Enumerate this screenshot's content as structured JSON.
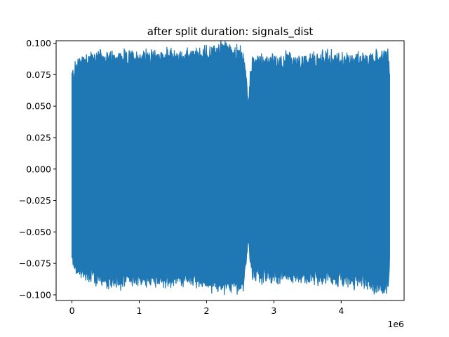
{
  "chart_data": {
    "type": "line",
    "title": "after split duration: signals_dist",
    "xlabel": "",
    "ylabel": "",
    "x_scale_label": "1e6",
    "x_ticks": [
      0,
      1,
      2,
      3,
      4
    ],
    "x_tick_labels": [
      "0",
      "1",
      "2",
      "3",
      "4"
    ],
    "y_ticks": [
      -0.1,
      -0.075,
      -0.05,
      -0.025,
      0.0,
      0.025,
      0.05,
      0.075,
      0.1
    ],
    "y_tick_labels": [
      "−0.100",
      "−0.075",
      "−0.050",
      "−0.025",
      "0.000",
      "0.025",
      "0.050",
      "0.075",
      "0.100"
    ],
    "xlim": [
      -0.235,
      4.935
    ],
    "ylim": [
      -0.1045,
      0.102
    ],
    "grid": false,
    "legend": "none",
    "series": [
      {
        "name": "",
        "color": "#1f77b4",
        "x_range": [
          0,
          4.72
        ],
        "x_unit": "1e6",
        "envelope_upper": {
          "x": [
            0.0,
            0.02,
            0.1,
            0.2,
            0.3,
            0.4,
            0.5,
            0.6,
            0.7,
            0.8,
            0.9,
            1.0,
            1.1,
            1.2,
            1.3,
            1.4,
            1.5,
            1.6,
            1.7,
            1.8,
            1.9,
            2.0,
            2.1,
            2.2,
            2.3,
            2.4,
            2.5,
            2.55,
            2.6,
            2.62,
            2.65,
            2.7,
            2.8,
            2.9,
            3.0,
            3.1,
            3.2,
            3.3,
            3.4,
            3.5,
            3.6,
            3.7,
            3.8,
            3.9,
            4.0,
            4.1,
            4.2,
            4.3,
            4.4,
            4.5,
            4.6,
            4.65,
            4.7,
            4.72
          ],
          "y": [
            0.074,
            0.075,
            0.085,
            0.087,
            0.088,
            0.088,
            0.088,
            0.087,
            0.088,
            0.087,
            0.088,
            0.088,
            0.088,
            0.089,
            0.089,
            0.089,
            0.089,
            0.087,
            0.088,
            0.089,
            0.089,
            0.091,
            0.093,
            0.094,
            0.098,
            0.092,
            0.092,
            0.088,
            0.065,
            0.045,
            0.075,
            0.086,
            0.086,
            0.085,
            0.084,
            0.085,
            0.086,
            0.084,
            0.084,
            0.085,
            0.085,
            0.087,
            0.088,
            0.086,
            0.086,
            0.087,
            0.087,
            0.087,
            0.086,
            0.086,
            0.088,
            0.088,
            0.091,
            0.07
          ]
        },
        "envelope_lower": {
          "x": [
            0.0,
            0.02,
            0.1,
            0.2,
            0.3,
            0.4,
            0.5,
            0.6,
            0.7,
            0.8,
            0.9,
            1.0,
            1.1,
            1.2,
            1.3,
            1.4,
            1.5,
            1.6,
            1.7,
            1.8,
            1.9,
            2.0,
            2.1,
            2.2,
            2.3,
            2.4,
            2.5,
            2.55,
            2.6,
            2.62,
            2.65,
            2.7,
            2.8,
            2.9,
            3.0,
            3.1,
            3.2,
            3.3,
            3.4,
            3.5,
            3.6,
            3.7,
            3.8,
            3.9,
            4.0,
            4.1,
            4.2,
            4.3,
            4.4,
            4.5,
            4.6,
            4.65,
            4.7,
            4.72
          ],
          "y": [
            -0.067,
            -0.075,
            -0.082,
            -0.083,
            -0.085,
            -0.087,
            -0.088,
            -0.087,
            -0.088,
            -0.087,
            -0.086,
            -0.086,
            -0.088,
            -0.085,
            -0.087,
            -0.088,
            -0.087,
            -0.085,
            -0.087,
            -0.086,
            -0.088,
            -0.09,
            -0.09,
            -0.091,
            -0.092,
            -0.091,
            -0.093,
            -0.09,
            -0.07,
            -0.05,
            -0.075,
            -0.083,
            -0.084,
            -0.084,
            -0.085,
            -0.085,
            -0.085,
            -0.085,
            -0.085,
            -0.086,
            -0.086,
            -0.086,
            -0.087,
            -0.087,
            -0.087,
            -0.088,
            -0.088,
            -0.088,
            -0.089,
            -0.092,
            -0.094,
            -0.091,
            -0.09,
            -0.07
          ]
        }
      }
    ]
  }
}
